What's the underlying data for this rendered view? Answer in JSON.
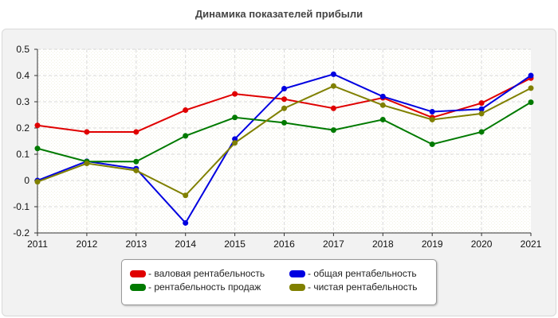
{
  "chart_data": {
    "type": "line",
    "title": "Динамика показателей прибыли",
    "x": [
      "2011",
      "2012",
      "2013",
      "2014",
      "2015",
      "2016",
      "2017",
      "2018",
      "2019",
      "2020",
      "2021"
    ],
    "ylim": [
      -0.2,
      0.5
    ],
    "yticks": [
      "0.5",
      "0.4",
      "0.3",
      "0.2",
      "0.1",
      "0",
      "-0.1",
      "-0.2"
    ],
    "grid": true,
    "legend_position": "bottom",
    "series": [
      {
        "name": "- валовая рентабельность",
        "color": "#e00000",
        "values": [
          0.21,
          0.185,
          0.185,
          0.268,
          0.33,
          0.31,
          0.275,
          0.315,
          0.24,
          0.295,
          0.39
        ]
      },
      {
        "name": "- общая рентабельность",
        "color": "#0000e0",
        "values": [
          0.0,
          0.073,
          0.045,
          -0.162,
          0.158,
          0.35,
          0.405,
          0.32,
          0.262,
          0.272,
          0.4
        ]
      },
      {
        "name": "- рентабельность продаж",
        "color": "#007a00",
        "values": [
          0.122,
          0.072,
          0.072,
          0.17,
          0.24,
          0.22,
          0.192,
          0.232,
          0.138,
          0.185,
          0.298
        ]
      },
      {
        "name": "- чистая рентабельность",
        "color": "#808000",
        "values": [
          -0.005,
          0.065,
          0.038,
          -0.057,
          0.143,
          0.275,
          0.36,
          0.287,
          0.232,
          0.255,
          0.352
        ]
      }
    ]
  }
}
